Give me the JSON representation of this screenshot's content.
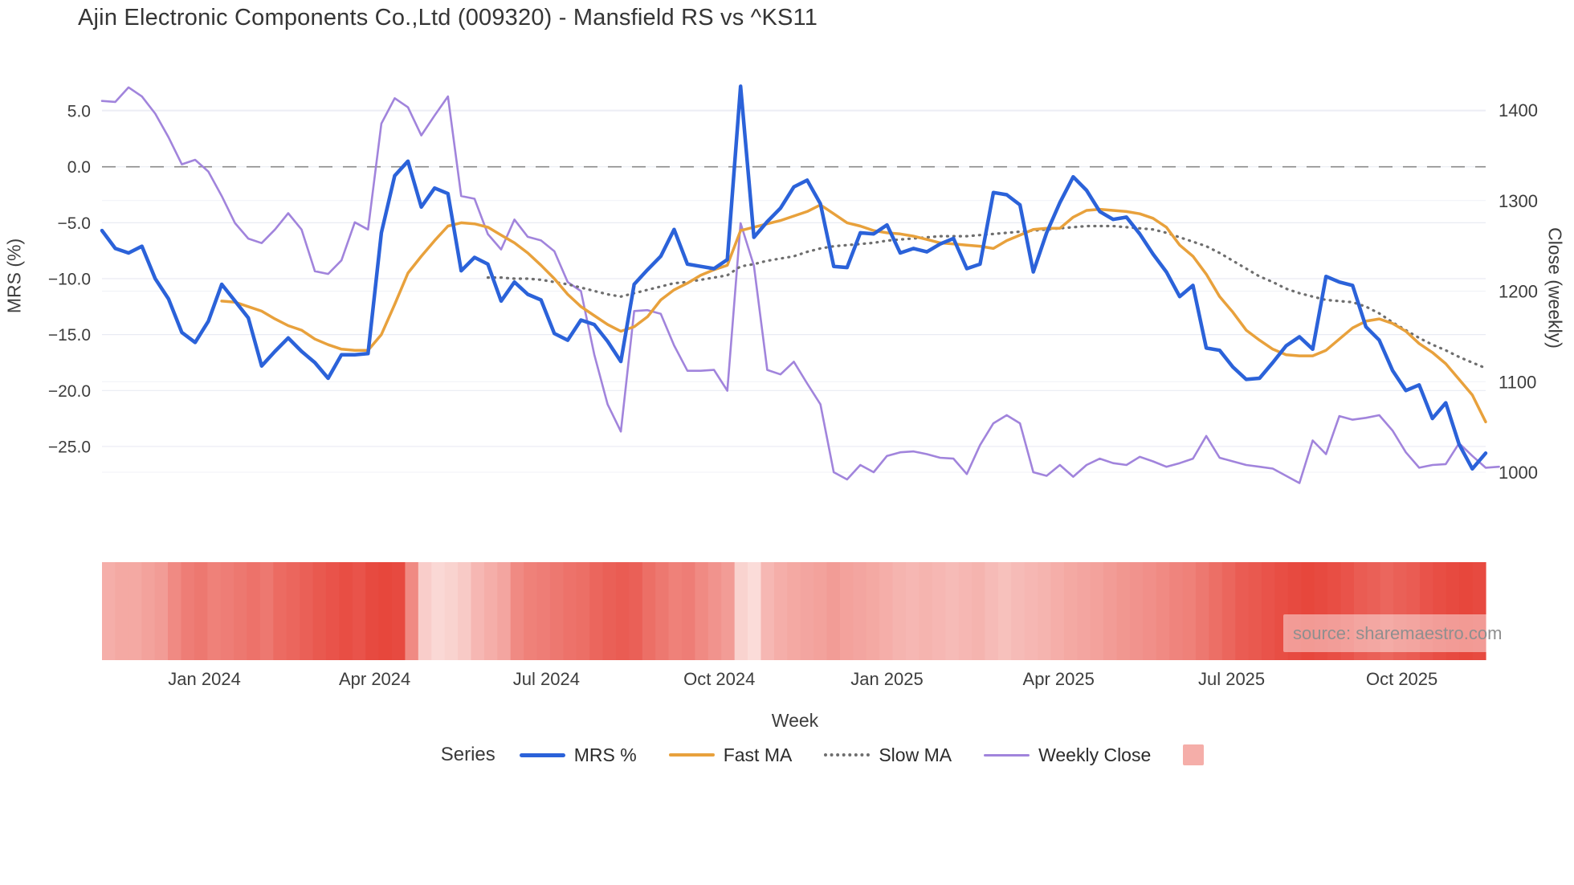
{
  "title": "Ajin Electronic Components Co.,Ltd (009320) - Mansfield RS vs ^KS11",
  "source_label": "source: sharemaestro.com",
  "axes": {
    "left_title": "MRS (%)",
    "right_title": "Close (weekly)",
    "x_title": "Week",
    "left_ticks": [
      {
        "v": 5,
        "label": "5.0"
      },
      {
        "v": 0,
        "label": "0.0"
      },
      {
        "v": -5,
        "label": "−5.0"
      },
      {
        "v": -10,
        "label": "−10.0"
      },
      {
        "v": -15,
        "label": "−15.0"
      },
      {
        "v": -20,
        "label": "−20.0"
      },
      {
        "v": -25,
        "label": "−25.0"
      }
    ],
    "right_ticks": [
      {
        "v": 1400,
        "label": "1400"
      },
      {
        "v": 1300,
        "label": "1300"
      },
      {
        "v": 1200,
        "label": "1200"
      },
      {
        "v": 1100,
        "label": "1100"
      },
      {
        "v": 1000,
        "label": "1000"
      }
    ],
    "x_ticks": [
      {
        "week": 7.7,
        "label": "Jan 2024"
      },
      {
        "week": 20.5,
        "label": "Apr 2024"
      },
      {
        "week": 33.4,
        "label": "Jul 2024"
      },
      {
        "week": 46.4,
        "label": "Oct 2024"
      },
      {
        "week": 59.0,
        "label": "Jan 2025"
      },
      {
        "week": 71.9,
        "label": "Apr 2025"
      },
      {
        "week": 84.9,
        "label": "Jul 2025"
      },
      {
        "week": 97.7,
        "label": "Oct 2025"
      }
    ]
  },
  "legend": {
    "title": "Series",
    "items": [
      {
        "label": "MRS %",
        "color": "#2b62d9",
        "style": "line"
      },
      {
        "label": "Fast MA",
        "color": "#e8a13c",
        "style": "line"
      },
      {
        "label": "Slow MA",
        "color": "#6e6e6e",
        "style": "dotted"
      },
      {
        "label": "Weekly Close",
        "color": "#a184dc",
        "style": "line"
      },
      {
        "label": "",
        "color": "#f5aea9",
        "style": "square"
      }
    ]
  },
  "chart_data": {
    "type": "line",
    "weeks": 105,
    "x_range_note": "weekly points, Nov 2023 through mid-Nov 2025",
    "zero_line": {
      "value": 0,
      "color": "#8a8a8a"
    },
    "grid": true,
    "left_ylim": [
      -28,
      9
    ],
    "right_ylim": [
      980,
      1440
    ],
    "series": [
      {
        "name": "MRS %",
        "axis": "left",
        "color": "#2b62d9",
        "width": 4.5,
        "dash": null,
        "values": [
          -5.7,
          -7.3,
          -7.7,
          -7.1,
          -10.0,
          -11.8,
          -14.8,
          -15.7,
          -13.8,
          -10.5,
          -12.0,
          -13.5,
          -17.8,
          -16.5,
          -15.3,
          -16.5,
          -17.5,
          -18.9,
          -16.8,
          -16.8,
          -16.7,
          -5.9,
          -0.8,
          0.5,
          -3.6,
          -1.9,
          -2.4,
          -9.3,
          -8.1,
          -8.7,
          -12.0,
          -10.3,
          -11.4,
          -11.9,
          -14.9,
          -15.5,
          -13.7,
          -14.1,
          -15.6,
          -17.4,
          -10.5,
          -9.2,
          -8.0,
          -5.6,
          -8.7,
          -8.9,
          -9.1,
          -8.3,
          7.2,
          -6.3,
          -4.9,
          -3.7,
          -1.8,
          -1.2,
          -3.3,
          -8.9,
          -9.0,
          -5.9,
          -6.0,
          -5.2,
          -7.7,
          -7.3,
          -7.6,
          -6.9,
          -6.4,
          -9.1,
          -8.7,
          -2.3,
          -2.5,
          -3.4,
          -9.4,
          -5.9,
          -3.2,
          -0.9,
          -2.1,
          -4.0,
          -4.7,
          -4.5,
          -6.0,
          -7.8,
          -9.4,
          -11.6,
          -10.6,
          -16.2,
          -16.4,
          -17.9,
          -19.0,
          -18.9,
          -17.5,
          -16.0,
          -15.2,
          -16.3,
          -9.8,
          -10.3,
          -10.6,
          -14.3,
          -15.5,
          -18.2,
          -20.0,
          -19.5,
          -22.5,
          -21.1,
          -24.8,
          -27.0,
          -25.6
        ]
      },
      {
        "name": "Fast MA",
        "axis": "left",
        "color": "#e8a13c",
        "width": 3.5,
        "dash": null,
        "values": [
          null,
          null,
          null,
          null,
          null,
          null,
          null,
          null,
          null,
          -12.0,
          -12.1,
          -12.5,
          -12.9,
          -13.6,
          -14.2,
          -14.6,
          -15.4,
          -15.9,
          -16.3,
          -16.4,
          -16.4,
          -15.0,
          -12.3,
          -9.5,
          -8.0,
          -6.6,
          -5.3,
          -5.0,
          -5.1,
          -5.4,
          -6.1,
          -6.8,
          -7.7,
          -8.8,
          -10.0,
          -11.4,
          -12.5,
          -13.3,
          -14.1,
          -14.7,
          -14.3,
          -13.4,
          -11.9,
          -11.0,
          -10.4,
          -9.7,
          -9.2,
          -8.8,
          -5.7,
          -5.4,
          -5.1,
          -4.8,
          -4.4,
          -4.0,
          -3.4,
          -4.2,
          -5.0,
          -5.3,
          -5.7,
          -5.9,
          -6.0,
          -6.2,
          -6.5,
          -6.8,
          -6.9,
          -7.0,
          -7.1,
          -7.3,
          -6.6,
          -6.1,
          -5.6,
          -5.5,
          -5.5,
          -4.5,
          -3.9,
          -3.8,
          -3.9,
          -4.0,
          -4.2,
          -4.6,
          -5.4,
          -7.0,
          -8.0,
          -9.6,
          -11.6,
          -13.0,
          -14.6,
          -15.5,
          -16.3,
          -16.8,
          -16.9,
          -16.9,
          -16.4,
          -15.4,
          -14.4,
          -13.8,
          -13.6,
          -14.0,
          -14.7,
          -15.8,
          -16.6,
          -17.6,
          -19.0,
          -20.4,
          -22.8
        ]
      },
      {
        "name": "Slow MA",
        "axis": "left",
        "color": "#6e6e6e",
        "width": 3.2,
        "dash": "1 7",
        "values": [
          null,
          null,
          null,
          null,
          null,
          null,
          null,
          null,
          null,
          null,
          null,
          null,
          null,
          null,
          null,
          null,
          null,
          null,
          null,
          null,
          null,
          null,
          null,
          null,
          null,
          null,
          null,
          null,
          null,
          -9.9,
          -9.9,
          -10.0,
          -10.0,
          -10.1,
          -10.3,
          -10.5,
          -10.8,
          -11.1,
          -11.4,
          -11.6,
          -11.3,
          -11.0,
          -10.7,
          -10.4,
          -10.3,
          -10.1,
          -9.9,
          -9.7,
          -8.9,
          -8.7,
          -8.4,
          -8.2,
          -8.0,
          -7.6,
          -7.3,
          -7.1,
          -7.0,
          -6.9,
          -6.8,
          -6.6,
          -6.5,
          -6.4,
          -6.3,
          -6.2,
          -6.2,
          -6.2,
          -6.1,
          -6.0,
          -5.9,
          -5.8,
          -5.7,
          -5.6,
          -5.5,
          -5.4,
          -5.3,
          -5.3,
          -5.3,
          -5.4,
          -5.5,
          -5.6,
          -5.9,
          -6.3,
          -6.7,
          -7.1,
          -7.7,
          -8.4,
          -9.1,
          -9.8,
          -10.3,
          -10.9,
          -11.3,
          -11.6,
          -11.9,
          -12.0,
          -12.1,
          -12.5,
          -13.1,
          -13.9,
          -14.6,
          -15.3,
          -15.9,
          -16.4,
          -17.0,
          -17.5,
          -18.0
        ]
      },
      {
        "name": "Weekly Close",
        "axis": "right",
        "color": "#a184dc",
        "width": 2.6,
        "dash": null,
        "values": [
          1410,
          1409,
          1425,
          1415,
          1396,
          1370,
          1340,
          1345,
          1332,
          1305,
          1275,
          1258,
          1253,
          1268,
          1286,
          1268,
          1222,
          1219,
          1234,
          1276,
          1268,
          1385,
          1413,
          1403,
          1372,
          1394,
          1415,
          1305,
          1302,
          1263,
          1246,
          1279,
          1260,
          1256,
          1244,
          1210,
          1200,
          1130,
          1075,
          1045,
          1178,
          1179,
          1175,
          1140,
          1112,
          1112,
          1113,
          1090,
          1275,
          1228,
          1113,
          1108,
          1122,
          1098,
          1075,
          1000,
          992,
          1008,
          1000,
          1018,
          1022,
          1023,
          1020,
          1016,
          1015,
          998,
          1030,
          1054,
          1063,
          1054,
          1000,
          996,
          1008,
          995,
          1008,
          1015,
          1010,
          1008,
          1017,
          1012,
          1006,
          1010,
          1015,
          1040,
          1016,
          1012,
          1008,
          1006,
          1004,
          996,
          988,
          1035,
          1020,
          1062,
          1058,
          1060,
          1063,
          1046,
          1022,
          1005,
          1008,
          1009,
          1032,
          1018,
          1005,
          1006
        ]
      },
      {
        "name": "Heatmap",
        "axis": "none",
        "color_light": "#fdeeec",
        "color_dark": "#e5382d",
        "type": "heatmap-strip",
        "intensities": [
          0.35,
          0.38,
          0.38,
          0.42,
          0.45,
          0.55,
          0.62,
          0.65,
          0.6,
          0.62,
          0.65,
          0.68,
          0.65,
          0.72,
          0.75,
          0.78,
          0.82,
          0.85,
          0.88,
          0.85,
          0.9,
          0.92,
          0.9,
          0.55,
          0.18,
          0.12,
          0.15,
          0.2,
          0.3,
          0.35,
          0.4,
          0.55,
          0.6,
          0.62,
          0.65,
          0.68,
          0.7,
          0.75,
          0.78,
          0.8,
          0.78,
          0.7,
          0.65,
          0.6,
          0.62,
          0.55,
          0.5,
          0.45,
          0.15,
          0.1,
          0.3,
          0.35,
          0.38,
          0.4,
          0.42,
          0.45,
          0.42,
          0.4,
          0.38,
          0.35,
          0.32,
          0.3,
          0.32,
          0.3,
          0.28,
          0.3,
          0.32,
          0.28,
          0.25,
          0.28,
          0.3,
          0.32,
          0.35,
          0.38,
          0.4,
          0.42,
          0.45,
          0.48,
          0.5,
          0.52,
          0.55,
          0.58,
          0.6,
          0.65,
          0.7,
          0.75,
          0.8,
          0.82,
          0.85,
          0.88,
          0.9,
          0.92,
          0.9,
          0.88,
          0.85,
          0.8,
          0.78,
          0.75,
          0.78,
          0.8,
          0.85,
          0.88,
          0.9,
          0.92,
          0.9
        ]
      }
    ]
  }
}
